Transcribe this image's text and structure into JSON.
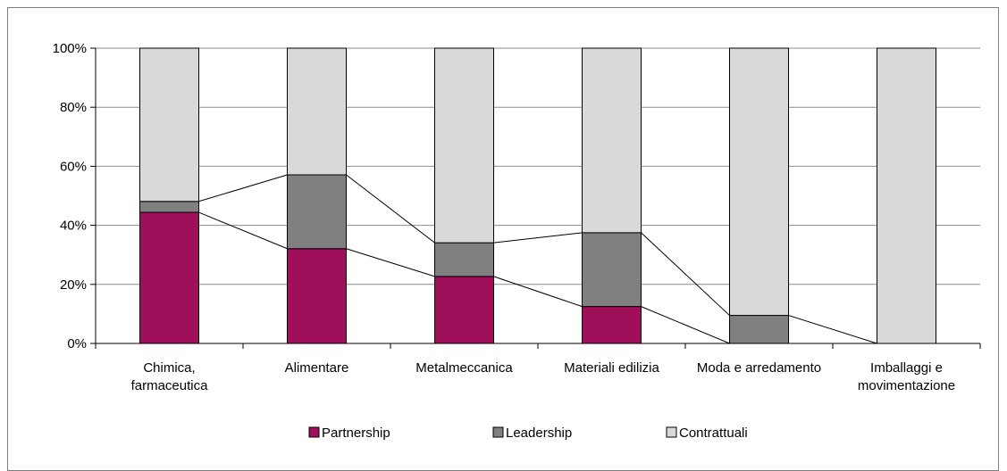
{
  "chart_data": {
    "type": "bar",
    "stacked": true,
    "percent": true,
    "categories": [
      [
        "Chimica,",
        "farmaceutica"
      ],
      [
        "Alimentare"
      ],
      [
        "Metalmeccanica"
      ],
      [
        "Materiali edilizia"
      ],
      [
        "Moda e arredamento"
      ],
      [
        "Imballaggi e",
        "movimentazione"
      ]
    ],
    "series": [
      {
        "name": "Partnership",
        "values": [
          44.4,
          32.1,
          22.7,
          12.5,
          0,
          0
        ],
        "color": "#a0105a"
      },
      {
        "name": "Leadership",
        "values": [
          3.7,
          25.0,
          11.4,
          25.0,
          9.5,
          0
        ],
        "color": "#808080"
      },
      {
        "name": "Contrattuali",
        "values": [
          51.9,
          42.9,
          65.9,
          62.5,
          90.5,
          100
        ],
        "color": "#d9d9d9"
      }
    ],
    "ylim": [
      0,
      100
    ],
    "yticks": [
      "0%",
      "20%",
      "40%",
      "60%",
      "80%",
      "100%"
    ],
    "grid": true,
    "series_lines": true,
    "legend_position": "bottom",
    "title": "",
    "xlabel": "",
    "ylabel": ""
  }
}
